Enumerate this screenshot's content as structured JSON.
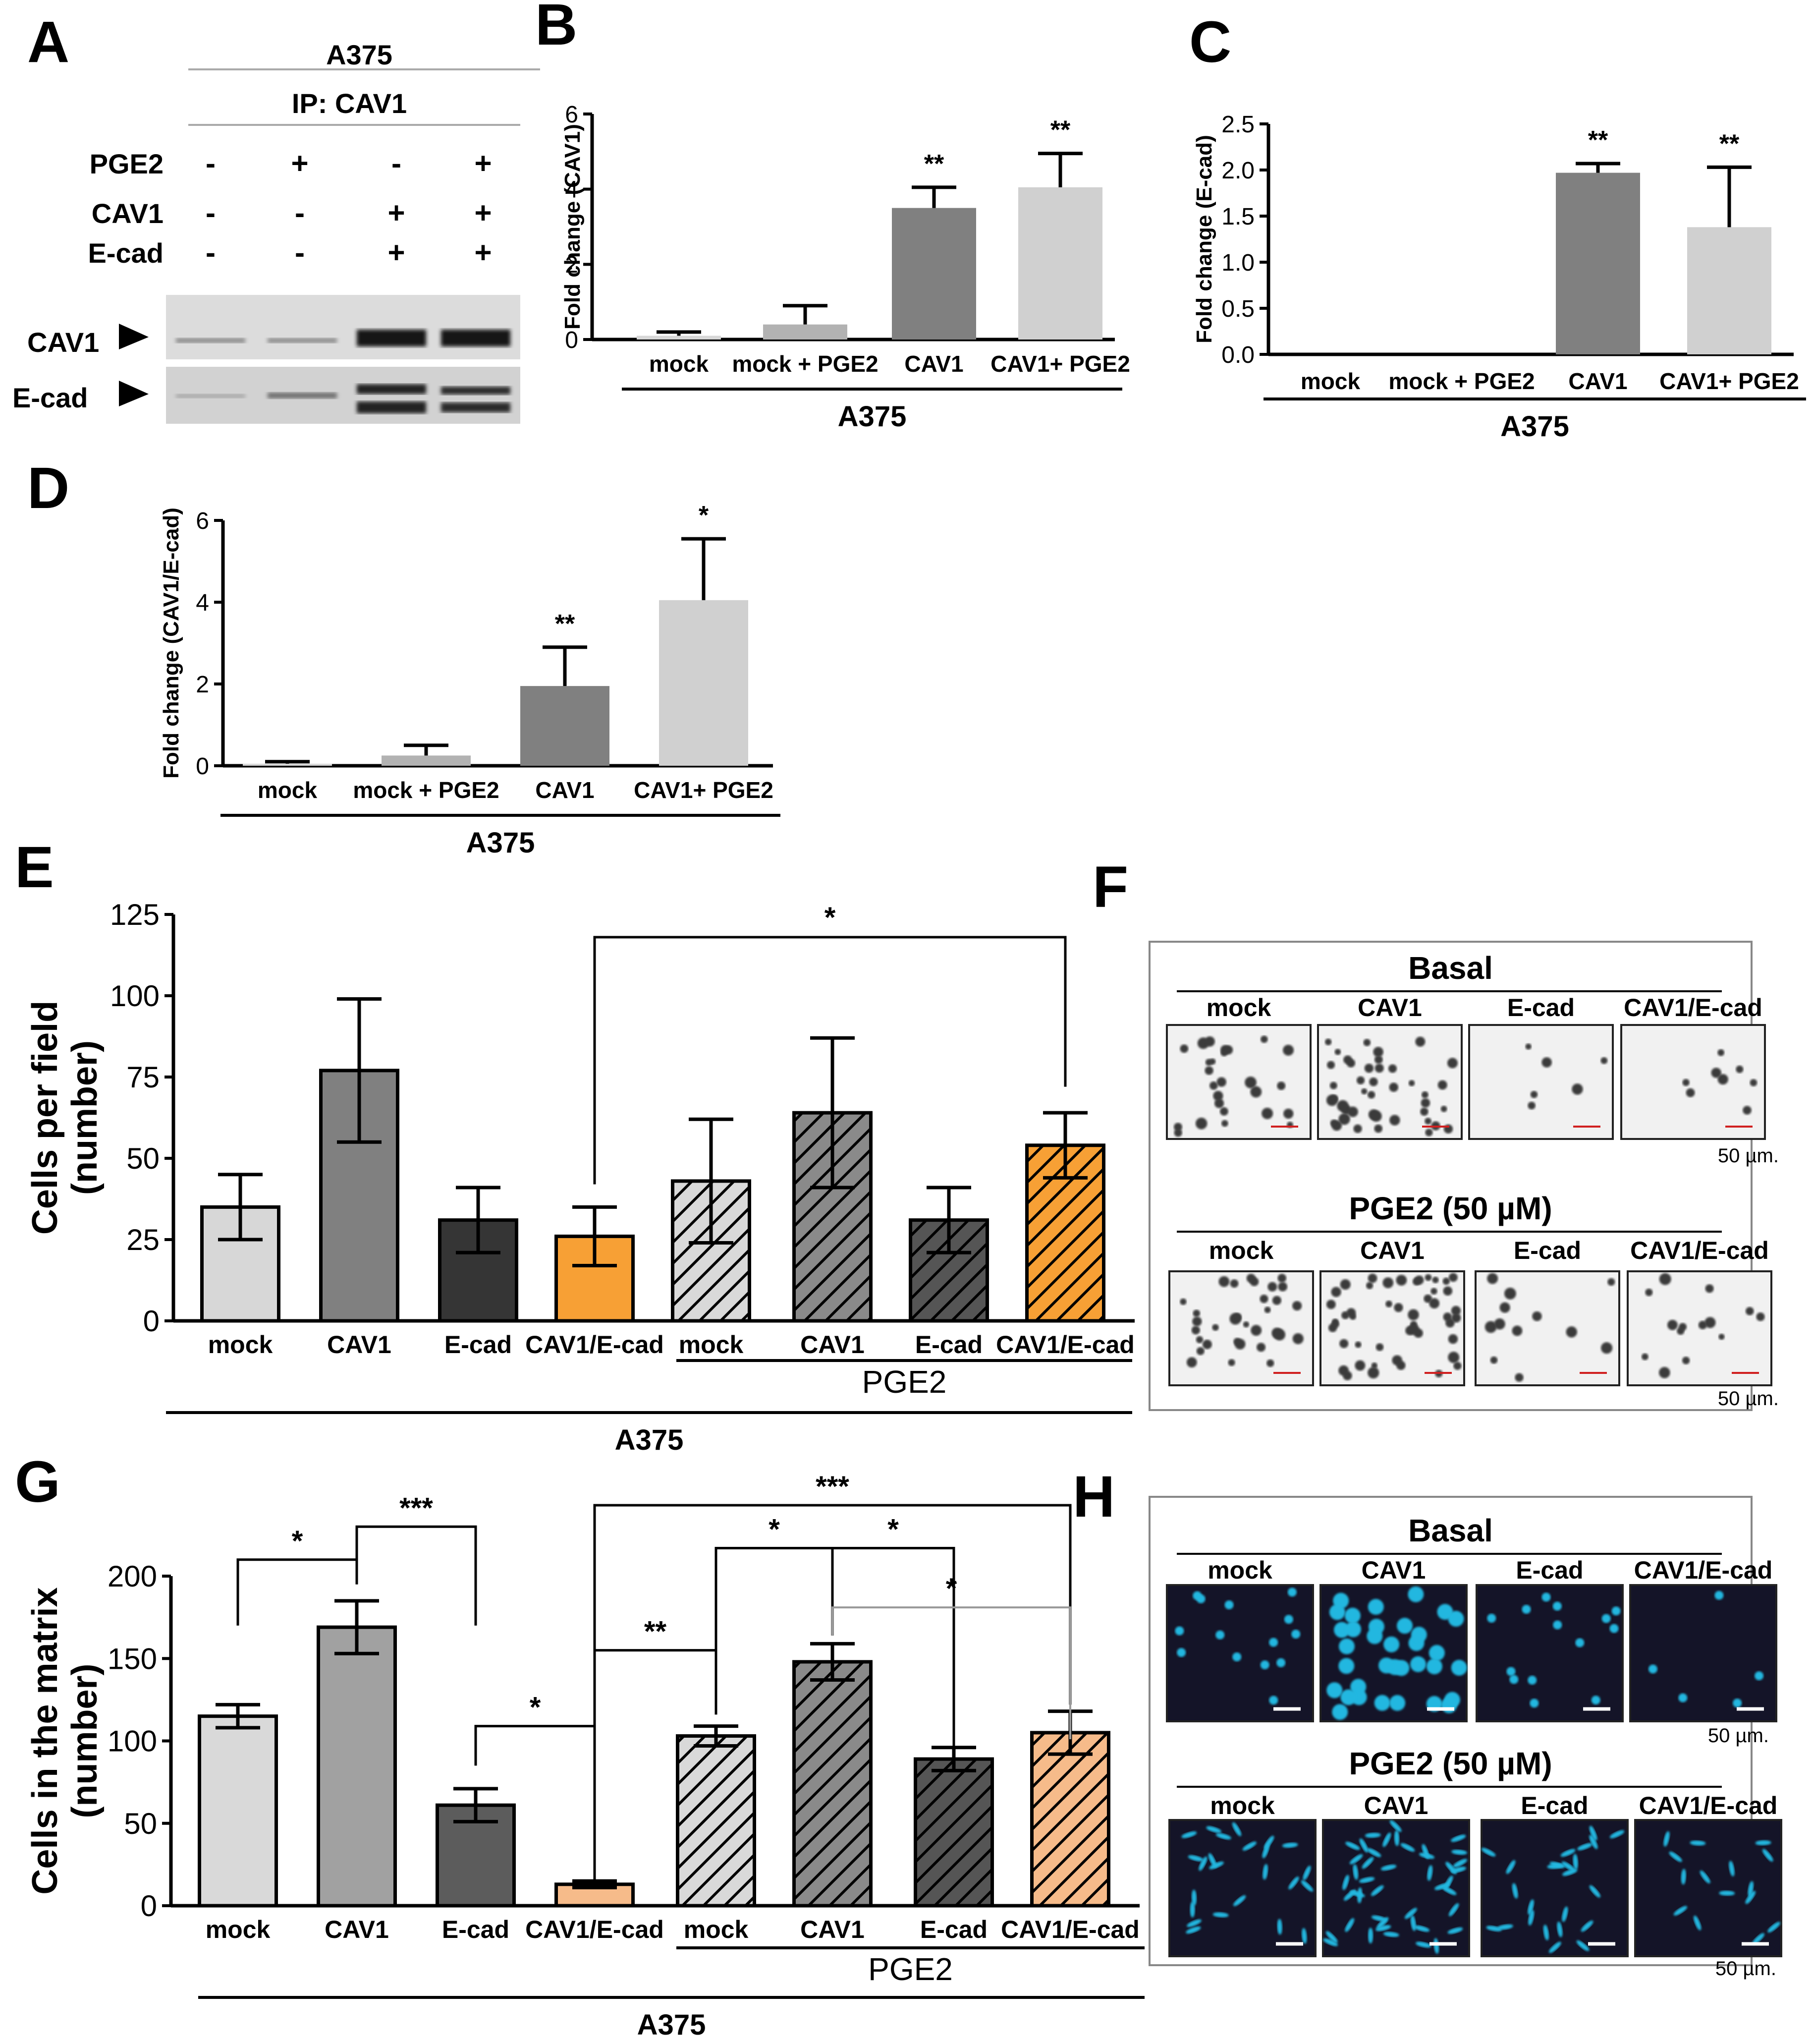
{
  "panel_labels": {
    "A": "A",
    "B": "B",
    "C": "C",
    "D": "D",
    "E": "E",
    "F": "F",
    "G": "G",
    "H": "H"
  },
  "blot": {
    "cell_line": "A375",
    "ip": "IP: CAV1",
    "rows": [
      {
        "label": "PGE2",
        "signs": [
          "-",
          "+",
          "-",
          "+"
        ]
      },
      {
        "label": "CAV1",
        "signs": [
          "-",
          "-",
          "+",
          "+"
        ]
      },
      {
        "label": "E-cad",
        "signs": [
          "-",
          "-",
          "+",
          "+"
        ]
      }
    ],
    "bands": [
      "CAV1",
      "E-cad"
    ]
  },
  "colors": {
    "mock_light": "#d7d7d7",
    "mock_pge2": "#b2b2b2",
    "cav1_dark": "#808080",
    "cav1_pge2": "#d0d0d0",
    "e_cad": "#353535",
    "orange": "#f7a035",
    "g_mock": "#d9d9d9",
    "g_cav1": "#a1a1a1",
    "g_ecad": "#5c5c5c",
    "g_orange": "#f6bb8a",
    "fluor_bg": "#141428",
    "fluor_cell": "#22b7e0"
  },
  "chart_data": [
    {
      "id": "B",
      "type": "bar",
      "categories": [
        "mock",
        "mock + PGE2",
        "CAV1",
        "CAV1+ PGE2"
      ],
      "values": [
        0.1,
        0.4,
        3.5,
        4.05
      ],
      "errors": [
        0.1,
        0.5,
        0.55,
        0.9
      ],
      "significance": [
        "",
        "",
        "**",
        "**"
      ],
      "ylabel": "Fold change (CAV1)",
      "yticks": [
        "0",
        "2",
        "4",
        "6"
      ],
      "ylim": [
        0,
        6
      ],
      "group_label": "A375"
    },
    {
      "id": "C",
      "type": "bar",
      "categories": [
        "mock",
        "mock + PGE2",
        "CAV1",
        "CAV1+ PGE2"
      ],
      "values": [
        0,
        0,
        1.97,
        1.38
      ],
      "errors": [
        0,
        0,
        0.1,
        0.65
      ],
      "significance": [
        "",
        "",
        "**",
        "**"
      ],
      "ylabel": "Fold change (E-cad)",
      "yticks": [
        "0.0",
        "0.5",
        "1.0",
        "1.5",
        "2.0",
        "2.5"
      ],
      "ylim": [
        0,
        2.5
      ],
      "group_label": "A375"
    },
    {
      "id": "D",
      "type": "bar",
      "categories": [
        "mock",
        "mock + PGE2",
        "CAV1",
        "CAV1+ PGE2"
      ],
      "values": [
        0.05,
        0.25,
        1.95,
        4.05
      ],
      "errors": [
        0.05,
        0.25,
        0.95,
        1.5
      ],
      "significance": [
        "",
        "",
        "**",
        "*"
      ],
      "ylabel": "Fold change (CAV1/E-cad)",
      "yticks": [
        "0",
        "2",
        "4",
        "6"
      ],
      "ylim": [
        0,
        6
      ],
      "group_label": "A375"
    },
    {
      "id": "E",
      "type": "bar",
      "categories": [
        "mock",
        "CAV1",
        "E-cad",
        "CAV1/E-cad",
        "mock",
        "CAV1",
        "E-cad",
        "CAV1/E-cad"
      ],
      "values": [
        35,
        77,
        31,
        26,
        43,
        64,
        31,
        54
      ],
      "errors": [
        10,
        22,
        10,
        9,
        19,
        23,
        10,
        10
      ],
      "ylabel_line1": "Cells per field",
      "ylabel_line2": "(number)",
      "yticks": [
        "0",
        "25",
        "50",
        "75",
        "100",
        "125"
      ],
      "ylim": [
        0,
        125
      ],
      "significance": [
        {
          "from": 3,
          "to": 7,
          "label": "*"
        }
      ],
      "subgroup_label": "PGE2",
      "group_label": "A375"
    },
    {
      "id": "G",
      "type": "bar",
      "categories": [
        "mock",
        "CAV1",
        "E-cad",
        "CAV1/E-cad",
        "mock",
        "CAV1",
        "E-cad",
        "CAV1/E-cad"
      ],
      "values": [
        115,
        169,
        61,
        13,
        103,
        148,
        89,
        105
      ],
      "errors": [
        7,
        16,
        10,
        2,
        6,
        11,
        7,
        13
      ],
      "ylabel_line1": "Cells in the matrix",
      "ylabel_line2": "(number)",
      "yticks": [
        "0",
        "50",
        "100",
        "150",
        "200"
      ],
      "ylim": [
        0,
        200
      ],
      "significance": [
        {
          "from": 0,
          "to": 1,
          "label": "*"
        },
        {
          "from": 1,
          "to": 2,
          "label": "***"
        },
        {
          "from": 2,
          "to": 3,
          "label": "*"
        },
        {
          "from": 3,
          "to": 4,
          "label": "**"
        },
        {
          "from": 3,
          "to": 7,
          "label": "***"
        },
        {
          "from": 4,
          "to": 5,
          "label": "*"
        },
        {
          "from": 5,
          "to": 6,
          "label": "*"
        },
        {
          "from": 5,
          "to": 7,
          "label": "*"
        }
      ],
      "subgroup_label": "PGE2",
      "group_label": "A375"
    }
  ],
  "micrographs": {
    "F": {
      "rows": [
        {
          "title": "Basal",
          "labels": [
            "mock",
            "CAV1",
            "E-cad",
            "CAV1/E-cad"
          ],
          "scale": "50 µm."
        },
        {
          "title": "PGE2 (50 µM)",
          "labels": [
            "mock",
            "CAV1",
            "E-cad",
            "CAV1/E-cad"
          ],
          "scale": "50 µm."
        }
      ]
    },
    "H": {
      "rows": [
        {
          "title": "Basal",
          "labels": [
            "mock",
            "CAV1",
            "E-cad",
            "CAV1/E-cad"
          ],
          "scale": "50 µm."
        },
        {
          "title": "PGE2 (50 µM)",
          "labels": [
            "mock",
            "CAV1",
            "E-cad",
            "CAV1/E-cad"
          ],
          "scale": "50 µm."
        }
      ]
    }
  }
}
